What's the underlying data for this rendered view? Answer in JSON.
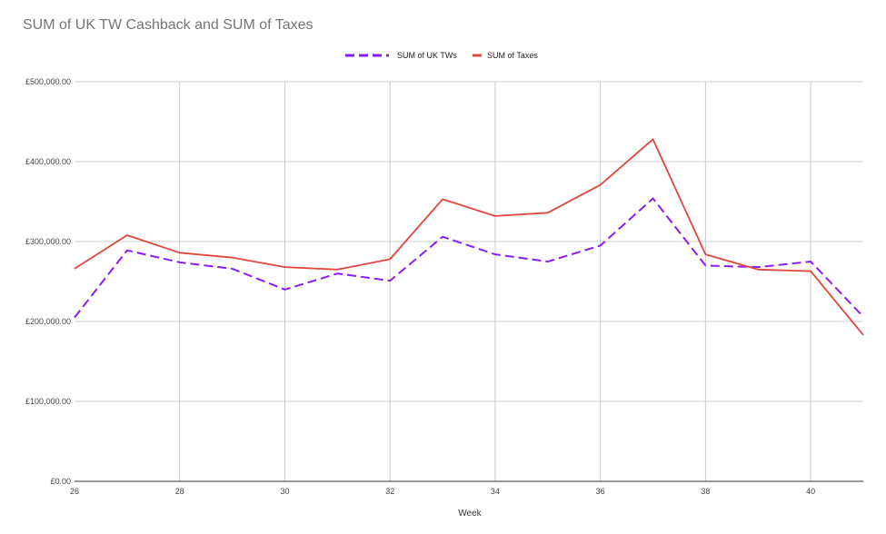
{
  "chart_data": {
    "type": "line",
    "title": "SUM of UK TW Cashback and SUM of Taxes",
    "xlabel": "Week",
    "ylabel": "",
    "x": [
      26,
      27,
      28,
      29,
      30,
      31,
      32,
      33,
      34,
      35,
      36,
      37,
      38,
      39,
      40,
      41
    ],
    "xlim": [
      26,
      41
    ],
    "ylim": [
      0,
      500000
    ],
    "x_ticks": [
      26,
      28,
      30,
      32,
      34,
      36,
      38,
      40
    ],
    "x_tick_labels": [
      "26",
      "28",
      "30",
      "32",
      "34",
      "36",
      "38",
      "40"
    ],
    "y_ticks": [
      0,
      100000,
      200000,
      300000,
      400000,
      500000
    ],
    "y_tick_labels": [
      "£0.00",
      "£100,000.00",
      "£200,000.00",
      "£300,000.00",
      "£400,000.00",
      "£500,000.00"
    ],
    "grid": true,
    "legend_position": "top-center",
    "series": [
      {
        "name": "SUM of UK TWs",
        "color": "#8b1cf5",
        "dash": "dashed",
        "values": [
          205000,
          289000,
          274000,
          266000,
          240000,
          260000,
          251000,
          306000,
          284000,
          275000,
          295000,
          354000,
          270000,
          268000,
          275000,
          206000
        ]
      },
      {
        "name": "SUM of Taxes",
        "color": "#e0463b",
        "dash": "solid",
        "values": [
          266000,
          308000,
          286000,
          280000,
          268000,
          265000,
          278000,
          353000,
          332000,
          336000,
          371000,
          428000,
          284000,
          265000,
          263000,
          183000
        ]
      }
    ]
  }
}
